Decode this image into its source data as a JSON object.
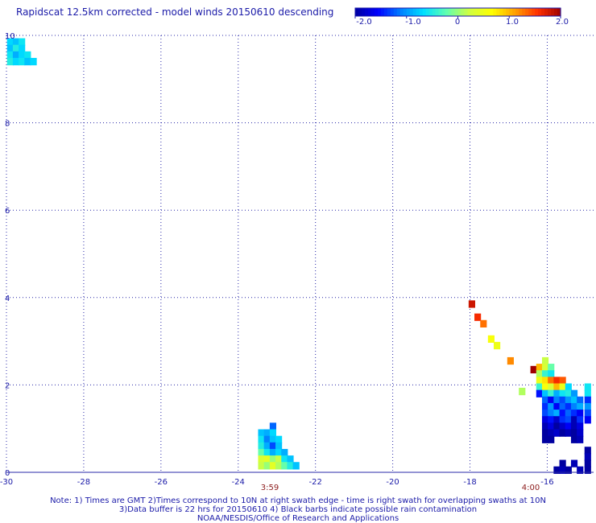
{
  "header": {
    "title": "Rapidscat 12.5km corrected - model winds 20150610 descending"
  },
  "colorbar": {
    "labels": [
      "-2.0",
      "-1.0",
      "0",
      "1.0",
      "2.0"
    ],
    "range": [
      -2,
      2
    ],
    "colors": [
      "#0000a0",
      "#0000ff",
      "#0080ff",
      "#00e0ff",
      "#60ffb0",
      "#d0ff40",
      "#ffff00",
      "#ffa000",
      "#ff3000",
      "#a00000"
    ]
  },
  "chart_data": {
    "type": "heatmap",
    "title": "Rapidscat 12.5km corrected - model winds 20150610 descending",
    "xlabel": "",
    "ylabel": "",
    "xlim": [
      -30,
      -14.8
    ],
    "ylim": [
      0,
      10
    ],
    "x_ticks": [
      "-30",
      "-28",
      "-26",
      "-24",
      "-22",
      "-20",
      "-18",
      "-16"
    ],
    "y_ticks": [
      "0",
      "2",
      "4",
      "6",
      "8",
      "10"
    ],
    "grid": true,
    "value_range": [
      -2,
      2
    ],
    "cell_size_deg": 0.17,
    "cells": [
      [
        -29.9,
        9.85,
        -0.7
      ],
      [
        -29.75,
        9.85,
        -0.8
      ],
      [
        -29.6,
        9.85,
        -0.6
      ],
      [
        -29.9,
        9.7,
        -0.8
      ],
      [
        -29.75,
        9.7,
        -0.5
      ],
      [
        -29.6,
        9.7,
        -0.7
      ],
      [
        -29.9,
        9.55,
        -0.6
      ],
      [
        -29.75,
        9.55,
        -0.9
      ],
      [
        -29.6,
        9.55,
        -0.7
      ],
      [
        -29.45,
        9.55,
        -0.6
      ],
      [
        -29.9,
        9.4,
        -0.5
      ],
      [
        -29.75,
        9.4,
        -0.7
      ],
      [
        -29.6,
        9.4,
        -0.6
      ],
      [
        -29.45,
        9.4,
        -0.8
      ],
      [
        -29.3,
        9.4,
        -0.7
      ],
      [
        -23.1,
        1.05,
        -1.2
      ],
      [
        -23.4,
        0.9,
        -0.8
      ],
      [
        -23.25,
        0.9,
        -0.9
      ],
      [
        -23.1,
        0.9,
        -0.7
      ],
      [
        -23.4,
        0.75,
        -0.6
      ],
      [
        -23.25,
        0.75,
        -1.1
      ],
      [
        -23.1,
        0.75,
        -0.8
      ],
      [
        -22.95,
        0.75,
        -0.7
      ],
      [
        -23.4,
        0.6,
        -0.5
      ],
      [
        -23.25,
        0.6,
        -0.9
      ],
      [
        -23.1,
        0.6,
        -1.3
      ],
      [
        -22.95,
        0.6,
        -0.8
      ],
      [
        -23.4,
        0.45,
        -0.2
      ],
      [
        -23.25,
        0.45,
        -0.6
      ],
      [
        -23.1,
        0.45,
        -0.9
      ],
      [
        -22.95,
        0.45,
        -0.7
      ],
      [
        -22.8,
        0.45,
        -0.9
      ],
      [
        -23.4,
        0.3,
        0.3
      ],
      [
        -23.25,
        0.3,
        0.4
      ],
      [
        -23.1,
        0.3,
        0.0
      ],
      [
        -22.95,
        0.3,
        0.2
      ],
      [
        -22.8,
        0.3,
        -0.6
      ],
      [
        -22.65,
        0.3,
        -0.8
      ],
      [
        -23.4,
        0.15,
        0.2
      ],
      [
        -23.25,
        0.15,
        0.0
      ],
      [
        -23.1,
        0.15,
        0.4
      ],
      [
        -22.95,
        0.15,
        0.1
      ],
      [
        -22.8,
        0.15,
        -0.2
      ],
      [
        -22.65,
        0.15,
        -0.5
      ],
      [
        -22.5,
        0.15,
        -0.8
      ],
      [
        -17.95,
        3.85,
        1.8
      ],
      [
        -17.8,
        3.55,
        1.6
      ],
      [
        -17.65,
        3.4,
        1.3
      ],
      [
        -17.45,
        3.05,
        0.6
      ],
      [
        -17.3,
        2.9,
        0.5
      ],
      [
        -16.95,
        2.55,
        1.2
      ],
      [
        -16.65,
        1.85,
        0.1
      ],
      [
        -16.35,
        2.35,
        2.0
      ],
      [
        -16.05,
        2.55,
        0.2
      ],
      [
        -16.2,
        2.4,
        1.0
      ],
      [
        -16.05,
        2.4,
        0.3
      ],
      [
        -15.9,
        2.4,
        -0.2
      ],
      [
        -16.2,
        2.25,
        0.1
      ],
      [
        -16.05,
        2.25,
        -0.4
      ],
      [
        -15.9,
        2.25,
        -0.6
      ],
      [
        -16.2,
        2.1,
        0.5
      ],
      [
        -16.05,
        2.1,
        0.8
      ],
      [
        -15.9,
        2.1,
        1.3
      ],
      [
        -15.75,
        2.1,
        1.6
      ],
      [
        -15.6,
        2.1,
        1.4
      ],
      [
        -16.2,
        1.95,
        -0.4
      ],
      [
        -16.05,
        1.95,
        0.6
      ],
      [
        -15.9,
        1.95,
        0.3
      ],
      [
        -15.75,
        1.95,
        1.0
      ],
      [
        -15.6,
        1.95,
        0.5
      ],
      [
        -15.45,
        1.95,
        -0.7
      ],
      [
        -14.95,
        1.95,
        -0.6
      ],
      [
        -16.2,
        1.8,
        -1.5
      ],
      [
        -16.05,
        1.8,
        -0.8
      ],
      [
        -15.9,
        1.8,
        -0.4
      ],
      [
        -15.75,
        1.8,
        -0.9
      ],
      [
        -15.6,
        1.8,
        -0.6
      ],
      [
        -15.45,
        1.8,
        -0.5
      ],
      [
        -15.3,
        1.8,
        -1.0
      ],
      [
        -14.95,
        1.8,
        -0.6
      ],
      [
        -16.05,
        1.65,
        -1.2
      ],
      [
        -15.9,
        1.65,
        -1.6
      ],
      [
        -15.75,
        1.65,
        -1.1
      ],
      [
        -15.6,
        1.65,
        -1.3
      ],
      [
        -15.45,
        1.65,
        -1.0
      ],
      [
        -15.3,
        1.65,
        -0.8
      ],
      [
        -15.15,
        1.65,
        -1.2
      ],
      [
        -14.95,
        1.65,
        -1.4
      ],
      [
        -16.05,
        1.5,
        -1.4
      ],
      [
        -15.9,
        1.5,
        -1.0
      ],
      [
        -15.75,
        1.5,
        -1.6
      ],
      [
        -15.6,
        1.5,
        -1.2
      ],
      [
        -15.45,
        1.5,
        -1.4
      ],
      [
        -15.3,
        1.5,
        -1.1
      ],
      [
        -15.15,
        1.5,
        -0.9
      ],
      [
        -14.95,
        1.5,
        -1.0
      ],
      [
        -16.05,
        1.35,
        -1.3
      ],
      [
        -15.9,
        1.35,
        -1.1
      ],
      [
        -15.75,
        1.35,
        -0.9
      ],
      [
        -15.6,
        1.35,
        -1.5
      ],
      [
        -15.45,
        1.35,
        -1.2
      ],
      [
        -15.3,
        1.35,
        -1.4
      ],
      [
        -15.15,
        1.35,
        -1.6
      ],
      [
        -14.95,
        1.35,
        -1.3
      ],
      [
        -16.05,
        1.2,
        -1.7
      ],
      [
        -15.9,
        1.2,
        -1.5
      ],
      [
        -15.75,
        1.2,
        -1.8
      ],
      [
        -15.6,
        1.2,
        -1.4
      ],
      [
        -15.45,
        1.2,
        -1.3
      ],
      [
        -15.3,
        1.2,
        -1.9
      ],
      [
        -15.15,
        1.2,
        -1.4
      ],
      [
        -14.95,
        1.2,
        -1.6
      ],
      [
        -16.05,
        1.05,
        -1.9
      ],
      [
        -15.9,
        1.05,
        -1.7
      ],
      [
        -15.75,
        1.05,
        -2.0
      ],
      [
        -15.6,
        1.05,
        -1.8
      ],
      [
        -15.45,
        1.05,
        -1.6
      ],
      [
        -15.3,
        1.05,
        -1.9
      ],
      [
        -15.15,
        1.05,
        -1.7
      ],
      [
        -16.05,
        0.9,
        -2.0
      ],
      [
        -15.9,
        0.9,
        -1.9
      ],
      [
        -15.75,
        0.9,
        -1.8
      ],
      [
        -15.6,
        0.9,
        -2.0
      ],
      [
        -15.45,
        0.9,
        -1.9
      ],
      [
        -15.3,
        0.9,
        -2.0
      ],
      [
        -15.15,
        0.9,
        -1.8
      ],
      [
        -16.05,
        0.75,
        -2.0
      ],
      [
        -15.9,
        0.75,
        -2.0
      ],
      [
        -15.3,
        0.75,
        -2.0
      ],
      [
        -15.15,
        0.75,
        -1.9
      ],
      [
        -14.95,
        0.5,
        -2.0
      ],
      [
        -14.95,
        0.35,
        -1.9
      ],
      [
        -15.6,
        0.2,
        -2.0
      ],
      [
        -15.3,
        0.2,
        -1.9
      ],
      [
        -14.95,
        0.2,
        -2.0
      ],
      [
        -15.75,
        0.05,
        -2.0
      ],
      [
        -15.6,
        0.05,
        -1.9
      ],
      [
        -15.45,
        0.05,
        -2.0
      ],
      [
        -15.15,
        0.05,
        -1.9
      ],
      [
        -14.95,
        0.05,
        -2.0
      ]
    ]
  },
  "annotations": {
    "time_left": "3:59",
    "time_right": "4:00"
  },
  "footer": {
    "note_line1": "Note: 1) Times are GMT 2)Times correspond to 10N at right swath edge - time is right swath for overlapping swaths at 10N",
    "note_line2": "3)Data buffer is 22 hrs for 20150610 4) Black barbs indicate possible rain contamination",
    "credit": "NOAA/NESDIS/Office of Research and Applications"
  }
}
